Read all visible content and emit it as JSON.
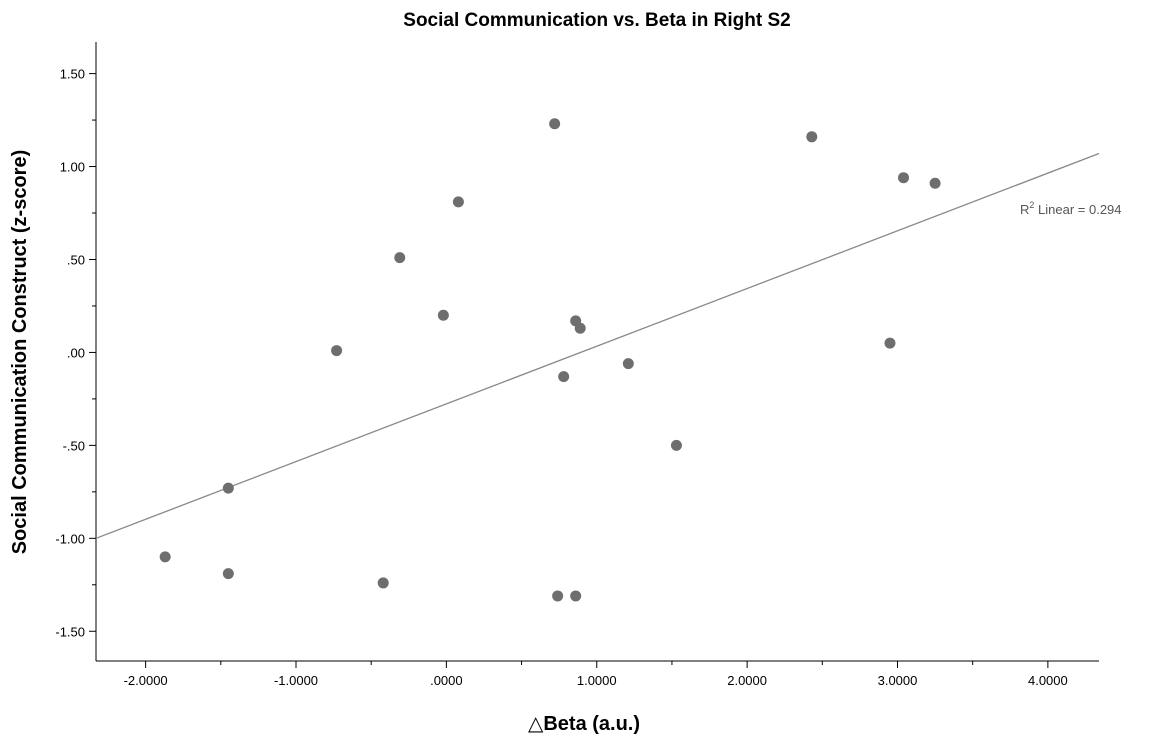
{
  "chart_data": {
    "type": "scatter",
    "title": "Social Communication vs. Beta in Right S2",
    "xlabel_symbol": "△",
    "xlabel": "Beta (a.u.)",
    "ylabel": "Social Communication Construct (z-score)",
    "xlim": [
      -2.33,
      4.34
    ],
    "ylim": [
      -1.66,
      1.67
    ],
    "x_ticks": [
      -2,
      -1,
      0,
      1,
      2,
      3,
      4
    ],
    "x_tick_labels": [
      "-2.0000",
      "-1.0000",
      ".0000",
      "1.0000",
      "2.0000",
      "3.0000",
      "4.0000"
    ],
    "x_minor_ticks": [
      -1.5,
      -0.5,
      0.5,
      1.5,
      2.5,
      3.5
    ],
    "y_ticks": [
      1.5,
      1.0,
      0.5,
      0.0,
      -0.5,
      -1.0,
      -1.5
    ],
    "y_tick_labels": [
      "1.50",
      "1.00",
      ".50",
      ".00",
      "-.50",
      "-1.00",
      "-1.50"
    ],
    "y_minor_ticks": [
      1.25,
      0.75,
      0.25,
      -0.25,
      -0.75,
      -1.25
    ],
    "grid": false,
    "points": [
      {
        "x": 0.72,
        "y": 1.23
      },
      {
        "x": 2.43,
        "y": 1.16
      },
      {
        "x": 3.04,
        "y": 0.94
      },
      {
        "x": 3.25,
        "y": 0.91
      },
      {
        "x": 0.08,
        "y": 0.81
      },
      {
        "x": -0.31,
        "y": 0.51
      },
      {
        "x": -0.02,
        "y": 0.2
      },
      {
        "x": 0.86,
        "y": 0.17
      },
      {
        "x": 0.89,
        "y": 0.13
      },
      {
        "x": -0.73,
        "y": 0.01
      },
      {
        "x": 2.95,
        "y": 0.05
      },
      {
        "x": 1.21,
        "y": -0.06
      },
      {
        "x": 0.78,
        "y": -0.13
      },
      {
        "x": 1.53,
        "y": -0.5
      },
      {
        "x": -1.45,
        "y": -0.73
      },
      {
        "x": -1.87,
        "y": -1.1
      },
      {
        "x": -1.45,
        "y": -1.19
      },
      {
        "x": -0.42,
        "y": -1.24
      },
      {
        "x": 0.74,
        "y": -1.31
      },
      {
        "x": 0.86,
        "y": -1.31
      }
    ],
    "fit_line": {
      "x": [
        -2.33,
        4.34
      ],
      "y": [
        -1.0,
        1.07
      ]
    },
    "annotation": {
      "prefix": "R",
      "superscript": "2",
      "text": " Linear = 0.294"
    }
  }
}
